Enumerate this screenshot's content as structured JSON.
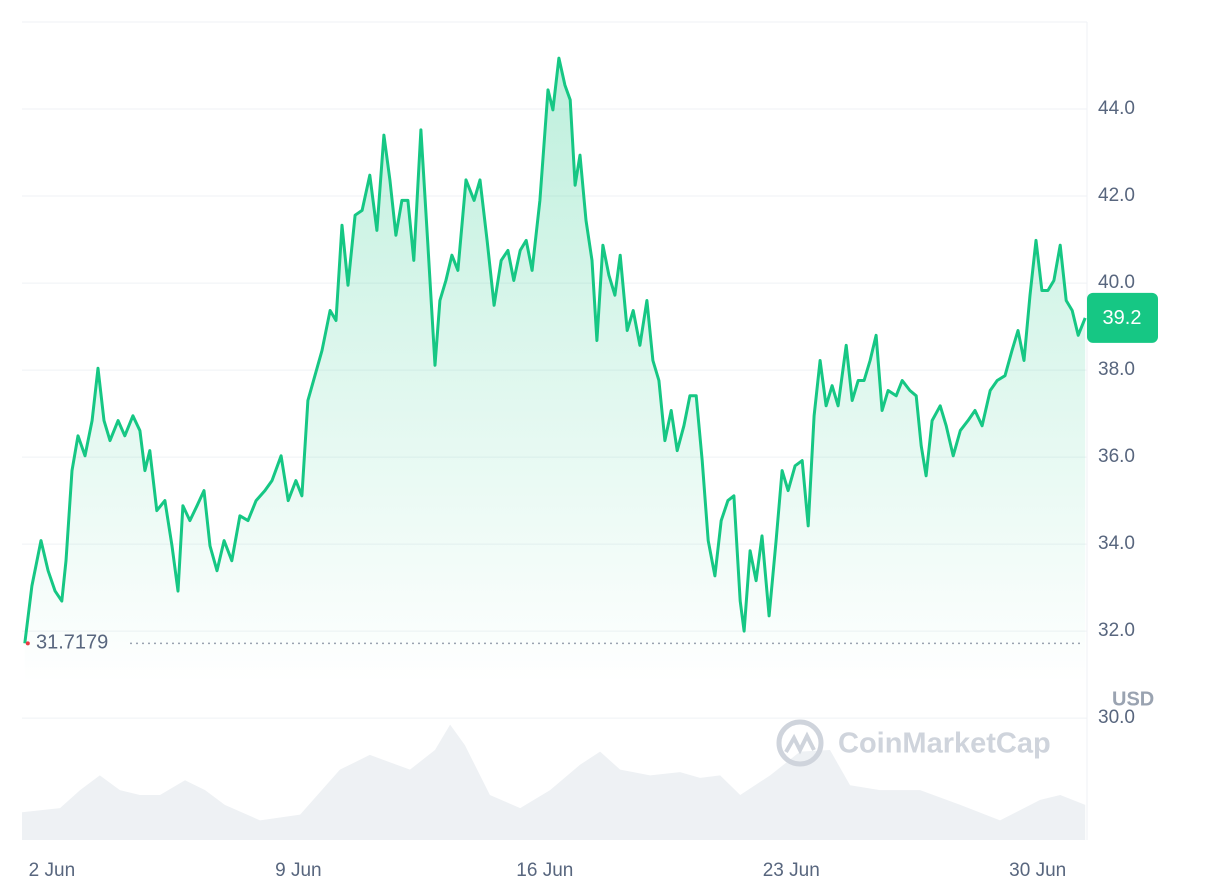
{
  "chart_data": {
    "type": "line",
    "currency": "USD",
    "watermark": "CoinMarketCap",
    "start_value": 31.7179,
    "current_value": 39.2,
    "xlim": [
      1.15,
      31.4
    ],
    "ylim": [
      27.2,
      46
    ],
    "y2lim": [
      0,
      100
    ],
    "xticks": [
      {
        "value": 2,
        "label": "2 Jun"
      },
      {
        "value": 9,
        "label": "9 Jun"
      },
      {
        "value": 16,
        "label": "16 Jun"
      },
      {
        "value": 23,
        "label": "23 Jun"
      },
      {
        "value": 30,
        "label": "30 Jun"
      }
    ],
    "yticks": [
      {
        "value": 30,
        "label": "30.0"
      },
      {
        "value": 32,
        "label": "32.0"
      },
      {
        "value": 34,
        "label": "34.0"
      },
      {
        "value": 36,
        "label": "36.0"
      },
      {
        "value": 38,
        "label": "38.0"
      },
      {
        "value": 40,
        "label": "40.0"
      },
      {
        "value": 42,
        "label": "42.0"
      },
      {
        "value": 44,
        "label": "44.0"
      }
    ],
    "grid": true,
    "series": [
      {
        "color": "#16c784",
        "x": [
          1.23,
          1.43,
          1.69,
          1.89,
          2.09,
          2.28,
          2.4,
          2.57,
          2.74,
          2.94,
          3.14,
          3.31,
          3.48,
          3.65,
          3.88,
          4.07,
          4.3,
          4.5,
          4.64,
          4.78,
          4.98,
          5.21,
          5.41,
          5.58,
          5.72,
          5.92,
          6.12,
          6.32,
          6.49,
          6.69,
          6.89,
          7.11,
          7.34,
          7.57,
          7.8,
          8.05,
          8.25,
          8.51,
          8.71,
          8.93,
          9.1,
          9.27,
          9.47,
          9.67,
          9.9,
          10.07,
          10.24,
          10.41,
          10.61,
          10.81,
          11.03,
          11.23,
          11.43,
          11.6,
          11.77,
          11.94,
          12.11,
          12.28,
          12.48,
          12.68,
          12.88,
          13.02,
          13.19,
          13.36,
          13.53,
          13.76,
          13.99,
          14.16,
          14.36,
          14.56,
          14.76,
          14.95,
          15.12,
          15.3,
          15.47,
          15.64,
          15.86,
          16.09,
          16.23,
          16.4,
          16.57,
          16.72,
          16.86,
          17.0,
          17.17,
          17.34,
          17.48,
          17.65,
          17.82,
          17.99,
          18.14,
          18.34,
          18.51,
          18.7,
          18.9,
          19.07,
          19.24,
          19.41,
          19.59,
          19.76,
          19.95,
          20.12,
          20.3,
          20.47,
          20.64,
          20.83,
          21.01,
          21.2,
          21.37,
          21.55,
          21.66,
          21.83,
          22.0,
          22.17,
          22.37,
          22.57,
          22.74,
          22.91,
          23.11,
          23.31,
          23.48,
          23.65,
          23.82,
          23.99,
          24.16,
          24.33,
          24.56,
          24.73,
          24.9,
          25.07,
          25.24,
          25.41,
          25.58,
          25.75,
          25.98,
          26.15,
          26.37,
          26.55,
          26.69,
          26.83,
          27.0,
          27.23,
          27.4,
          27.6,
          27.8,
          28.02,
          28.22,
          28.42,
          28.65,
          28.85,
          29.07,
          29.27,
          29.44,
          29.61,
          29.78,
          29.95,
          30.12,
          30.29,
          30.46,
          30.64,
          30.81,
          30.98,
          31.15,
          31.35
        ],
        "values": [
          31.72,
          33.04,
          34.08,
          33.39,
          32.92,
          32.69,
          33.62,
          35.69,
          36.49,
          36.03,
          36.84,
          38.04,
          36.84,
          36.38,
          36.84,
          36.49,
          36.95,
          36.61,
          35.69,
          36.15,
          34.77,
          35.0,
          33.96,
          32.92,
          34.88,
          34.54,
          34.88,
          35.23,
          33.96,
          33.39,
          34.08,
          33.62,
          34.65,
          34.54,
          35.0,
          35.23,
          35.46,
          36.03,
          35.0,
          35.46,
          35.11,
          37.3,
          37.87,
          38.45,
          39.37,
          39.14,
          41.33,
          39.95,
          41.56,
          41.67,
          42.48,
          41.21,
          43.4,
          42.37,
          41.1,
          41.9,
          41.9,
          40.52,
          43.52,
          40.87,
          38.11,
          39.6,
          40.06,
          40.64,
          40.29,
          42.37,
          41.9,
          42.37,
          40.98,
          39.49,
          40.52,
          40.75,
          40.06,
          40.75,
          40.98,
          40.29,
          41.9,
          44.44,
          43.98,
          45.17,
          44.55,
          44.21,
          42.25,
          42.94,
          41.44,
          40.52,
          38.68,
          40.87,
          40.18,
          39.72,
          40.64,
          38.91,
          39.37,
          38.57,
          39.6,
          38.22,
          37.76,
          36.38,
          37.07,
          36.15,
          36.72,
          37.41,
          37.41,
          35.92,
          34.08,
          33.27,
          34.54,
          35.0,
          35.11,
          32.69,
          32.0,
          33.85,
          33.16,
          34.19,
          32.35,
          34.08,
          35.69,
          35.23,
          35.8,
          35.92,
          34.42,
          36.95,
          38.22,
          37.18,
          37.64,
          37.18,
          38.57,
          37.3,
          37.76,
          37.76,
          38.22,
          38.8,
          37.07,
          37.53,
          37.41,
          37.76,
          37.53,
          37.41,
          36.26,
          35.57,
          36.84,
          37.18,
          36.72,
          36.03,
          36.61,
          36.84,
          37.07,
          36.72,
          37.53,
          37.76,
          37.87,
          38.45,
          38.91,
          38.22,
          39.72,
          40.98,
          39.83,
          39.83,
          40.06,
          40.87,
          39.6,
          39.37,
          38.8,
          39.2
        ]
      },
      {
        "color": "#eef1f4",
        "axis": "y2",
        "x": [
          1.15,
          2.23,
          2.8,
          3.36,
          3.93,
          4.5,
          5.07,
          5.78,
          6.35,
          6.91,
          7.91,
          9.05,
          10.18,
          11.03,
          12.17,
          12.88,
          13.31,
          13.73,
          14.44,
          15.3,
          16.15,
          17.0,
          17.57,
          18.14,
          18.99,
          19.84,
          20.41,
          20.98,
          21.55,
          22.4,
          23.25,
          24.1,
          24.67,
          25.52,
          26.66,
          27.8,
          28.93,
          30.07,
          30.64,
          31.35
        ],
        "values": [
          3.4,
          3.9,
          6.1,
          7.9,
          6.1,
          5.5,
          5.5,
          7.3,
          6.1,
          4.3,
          2.4,
          3.1,
          8.6,
          10.4,
          8.6,
          11.0,
          14.1,
          11.6,
          5.5,
          3.9,
          6.1,
          9.2,
          10.8,
          8.6,
          7.9,
          8.3,
          7.6,
          7.9,
          5.5,
          7.9,
          10.8,
          11.0,
          6.7,
          6.1,
          6.1,
          4.3,
          2.4,
          4.9,
          5.5,
          4.3
        ]
      }
    ]
  }
}
